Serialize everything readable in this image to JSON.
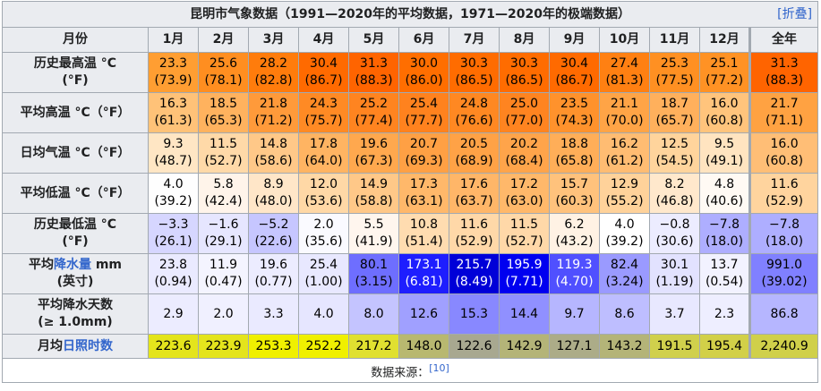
{
  "title": "昆明市气象数据（1991—2020年的平均数据，1971—2020年的极端数据）",
  "toggle": "[折叠]",
  "header": [
    "月份",
    "1月",
    "2月",
    "3月",
    "4月",
    "5月",
    "6月",
    "7月",
    "8月",
    "9月",
    "10月",
    "11月",
    "12月",
    "全年"
  ],
  "rows": [
    {
      "label": [
        [
          {
            "text": "历史最高温 °C"
          }
        ],
        [
          {
            "text": "(°F)"
          }
        ]
      ],
      "cells": [
        [
          "23.3",
          "(73.9)"
        ],
        [
          "25.6",
          "(78.1)"
        ],
        [
          "28.2",
          "(82.8)"
        ],
        [
          "30.4",
          "(86.7)"
        ],
        [
          "31.3",
          "(88.3)"
        ],
        [
          "30.0",
          "(86.0)"
        ],
        [
          "30.3",
          "(86.5)"
        ],
        [
          "30.3",
          "(86.5)"
        ],
        [
          "30.4",
          "(86.7)"
        ],
        [
          "27.4",
          "(81.3)"
        ],
        [
          "25.3",
          "(77.5)"
        ],
        [
          "25.1",
          "(77.2)"
        ],
        [
          "31.3",
          "(88.3)"
        ]
      ],
      "colors": [
        "#ff9e32",
        "#ff8e20",
        "#ff7c0c",
        "#ff6a00",
        "#ff6400",
        "#ff6e00",
        "#ff6c00",
        "#ff6c00",
        "#ff6a00",
        "#ff8012",
        "#ff9022",
        "#ff9224",
        "#ff6400"
      ]
    },
    {
      "label": [
        [
          {
            "text": "平均高温 °C（°F）"
          }
        ]
      ],
      "cells": [
        [
          "16.3",
          "(61.3)"
        ],
        [
          "18.5",
          "(65.3)"
        ],
        [
          "21.8",
          "(71.2)"
        ],
        [
          "24.3",
          "(75.7)"
        ],
        [
          "25.2",
          "(77.4)"
        ],
        [
          "25.4",
          "(77.7)"
        ],
        [
          "24.8",
          "(76.6)"
        ],
        [
          "25.0",
          "(77.0)"
        ],
        [
          "23.5",
          "(74.3)"
        ],
        [
          "21.1",
          "(70.0)"
        ],
        [
          "18.7",
          "(65.7)"
        ],
        [
          "16.0",
          "(60.8)"
        ],
        [
          "21.7",
          "(71.1)"
        ]
      ],
      "colors": [
        "#ffc278",
        "#ffb25e",
        "#ff9a3a",
        "#ff8a24",
        "#ff8420",
        "#ff821e",
        "#ff8822",
        "#ff8420",
        "#ff922c",
        "#ffa446",
        "#ffb05c",
        "#ffc47c",
        "#ffa242"
      ]
    },
    {
      "label": [
        [
          {
            "text": "日均气温 °C（°F）"
          }
        ]
      ],
      "cells": [
        [
          "9.3",
          "(48.7)"
        ],
        [
          "11.5",
          "(52.7)"
        ],
        [
          "14.8",
          "(58.6)"
        ],
        [
          "17.8",
          "(64.0)"
        ],
        [
          "19.6",
          "(67.3)"
        ],
        [
          "20.7",
          "(69.3)"
        ],
        [
          "20.5",
          "(68.9)"
        ],
        [
          "20.2",
          "(68.4)"
        ],
        [
          "18.8",
          "(65.8)"
        ],
        [
          "16.2",
          "(61.2)"
        ],
        [
          "12.5",
          "(54.5)"
        ],
        [
          "9.5",
          "(49.1)"
        ],
        [
          "16.0",
          "(60.8)"
        ]
      ],
      "colors": [
        "#ffe6c4",
        "#ffd9a8",
        "#ffc888",
        "#ffb462",
        "#ffa84e",
        "#ffa044",
        "#ffa246",
        "#ffa44a",
        "#ffae58",
        "#ffbc72",
        "#ffd49c",
        "#ffe4c0",
        "#ffbe76"
      ]
    },
    {
      "label": [
        [
          {
            "text": "平均低温 °C（°F）"
          }
        ]
      ],
      "cells": [
        [
          "4.0",
          "(39.2)"
        ],
        [
          "5.8",
          "(42.4)"
        ],
        [
          "8.9",
          "(48.0)"
        ],
        [
          "12.0",
          "(53.6)"
        ],
        [
          "14.9",
          "(58.8)"
        ],
        [
          "17.3",
          "(63.1)"
        ],
        [
          "17.6",
          "(63.7)"
        ],
        [
          "17.2",
          "(63.0)"
        ],
        [
          "15.7",
          "(60.3)"
        ],
        [
          "12.9",
          "(55.2)"
        ],
        [
          "8.2",
          "(46.8)"
        ],
        [
          "4.8",
          "(40.6)"
        ],
        [
          "11.6",
          "(52.9)"
        ]
      ],
      "colors": [
        "#fefefe",
        "#fff4ea",
        "#ffe6c8",
        "#ffd8a6",
        "#ffc888",
        "#ffb86a",
        "#ffb668",
        "#ffb86a",
        "#ffc27c",
        "#ffd29a",
        "#ffe8cc",
        "#fffaf4",
        "#ffd49e"
      ]
    },
    {
      "label": [
        [
          {
            "text": "历史最低温 °C"
          }
        ],
        [
          {
            "text": "(°F)"
          }
        ]
      ],
      "cells": [
        [
          "−3.3",
          "(26.1)"
        ],
        [
          "−1.6",
          "(29.1)"
        ],
        [
          "−5.2",
          "(22.6)"
        ],
        [
          "2.0",
          "(35.6)"
        ],
        [
          "5.5",
          "(41.9)"
        ],
        [
          "10.8",
          "(51.4)"
        ],
        [
          "11.6",
          "(52.9)"
        ],
        [
          "11.5",
          "(52.7)"
        ],
        [
          "6.2",
          "(43.2)"
        ],
        [
          "4.0",
          "(39.2)"
        ],
        [
          "−0.8",
          "(30.6)"
        ],
        [
          "−7.8",
          "(18.0)"
        ],
        [
          "−7.8",
          "(18.0)"
        ]
      ],
      "colors": [
        "#d6d6ff",
        "#e6e6ff",
        "#c6c6ff",
        "#fafaff",
        "#fff6ee",
        "#ffdcb0",
        "#ffd8a8",
        "#ffd8a8",
        "#fff2e4",
        "#ffffff",
        "#ececff",
        "#aeaeff",
        "#aeaeff"
      ]
    },
    {
      "label": [
        [
          {
            "text": "平均"
          },
          {
            "text": "降水量",
            "link": true
          },
          {
            "text": " mm"
          }
        ],
        [
          {
            "text": "(英寸)"
          }
        ]
      ],
      "cells": [
        [
          "23.8",
          "(0.94)"
        ],
        [
          "11.9",
          "(0.47)"
        ],
        [
          "19.6",
          "(0.77)"
        ],
        [
          "25.4",
          "(1.00)"
        ],
        [
          "80.1",
          "(3.15)"
        ],
        [
          "173.1",
          "(6.81)"
        ],
        [
          "215.7",
          "(8.49)"
        ],
        [
          "195.9",
          "(7.71)"
        ],
        [
          "119.3",
          "(4.70)"
        ],
        [
          "82.4",
          "(3.24)"
        ],
        [
          "30.1",
          "(1.19)"
        ],
        [
          "13.7",
          "(0.54)"
        ],
        [
          "991.0",
          "(39.02)"
        ]
      ],
      "colors": [
        "#eaeaff",
        "#f4f4ff",
        "#ececff",
        "#e8e8ff",
        "#6e6eff",
        "#1e1eff",
        "#0000d8",
        "#0000f0",
        "#5050ff",
        "#9a9aff",
        "#e2e2ff",
        "#f2f2ff",
        "#8080ff"
      ]
    },
    {
      "label": [
        [
          {
            "text": "平均降水天数"
          }
        ],
        [
          {
            "text": "(≥ 1.0mm)"
          }
        ]
      ],
      "cells": [
        [
          "2.9"
        ],
        [
          "2.0"
        ],
        [
          "3.3"
        ],
        [
          "4.0"
        ],
        [
          "8.0"
        ],
        [
          "12.6"
        ],
        [
          "15.3"
        ],
        [
          "14.4"
        ],
        [
          "9.7"
        ],
        [
          "8.6"
        ],
        [
          "3.7"
        ],
        [
          "2.3"
        ],
        [
          "86.8"
        ]
      ],
      "colors": [
        "#ececff",
        "#f0f0ff",
        "#eaeaff",
        "#e6e6ff",
        "#c4c4ff",
        "#a0a0ff",
        "#8888ff",
        "#9090ff",
        "#b6b6ff",
        "#bebeff",
        "#e8e8ff",
        "#eeeeff",
        "#b6b6ff"
      ]
    },
    {
      "label": [
        [
          {
            "text": "月均"
          },
          {
            "text": "日照时数",
            "link": true
          }
        ]
      ],
      "cells": [
        [
          "223.6"
        ],
        [
          "223.9"
        ],
        [
          "253.3"
        ],
        [
          "252.2"
        ],
        [
          "217.2"
        ],
        [
          "148.0"
        ],
        [
          "122.6"
        ],
        [
          "142.9"
        ],
        [
          "127.1"
        ],
        [
          "143.2"
        ],
        [
          "191.5"
        ],
        [
          "195.4"
        ],
        [
          "2,240.9"
        ]
      ],
      "colors": [
        "#e4e41c",
        "#e4e41c",
        "#f0f000",
        "#f0f000",
        "#e0e030",
        "#b8b870",
        "#a8a890",
        "#b4b478",
        "#acac88",
        "#b4b478",
        "#d0d04c",
        "#d2d048",
        "#d0d04a"
      ]
    }
  ],
  "footer": {
    "text": "数据来源：",
    "ref": "[10]"
  }
}
